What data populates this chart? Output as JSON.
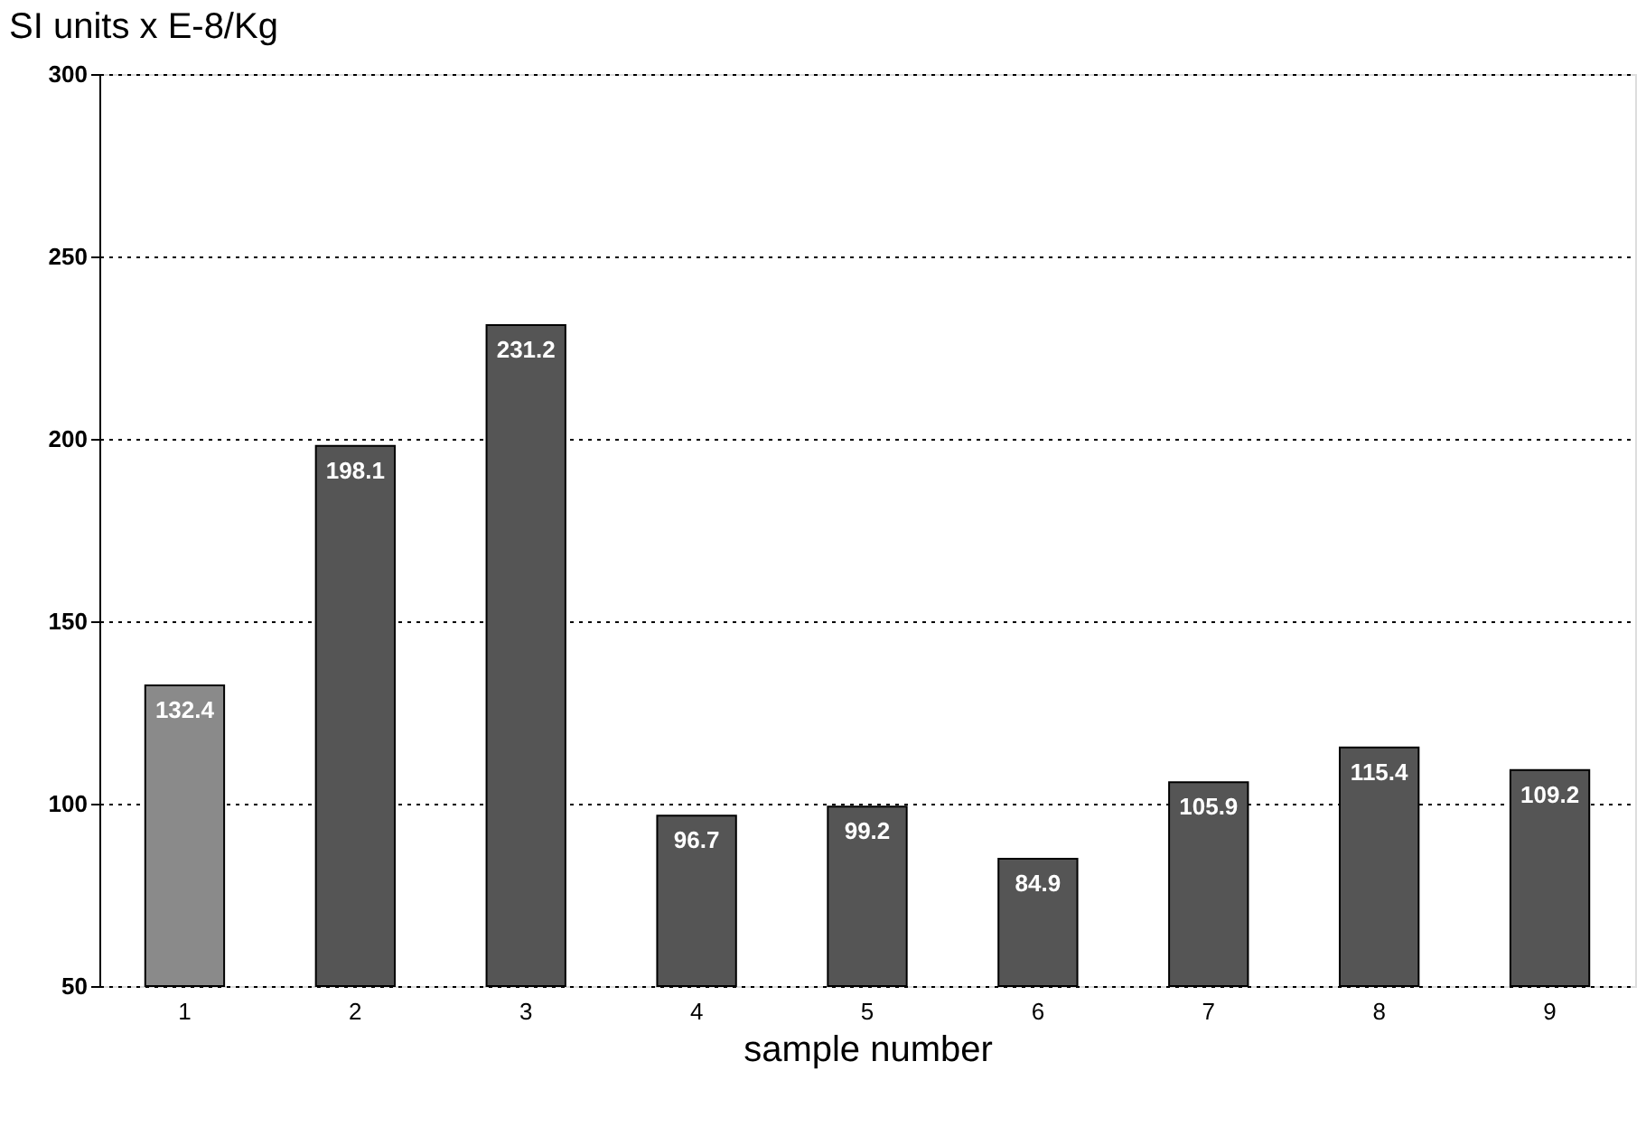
{
  "chart_data": {
    "type": "bar",
    "ylabel": "SI units x E-8/Kg",
    "xlabel": "sample number",
    "categories": [
      "1",
      "2",
      "3",
      "4",
      "5",
      "6",
      "7",
      "8",
      "9"
    ],
    "values": [
      132.4,
      198.1,
      231.2,
      96.7,
      99.2,
      84.9,
      105.9,
      115.4,
      109.2
    ],
    "colors": [
      "#8a8a8a",
      "#555555",
      "#555555",
      "#555555",
      "#555555",
      "#555555",
      "#555555",
      "#555555",
      "#555555"
    ],
    "ylim": [
      50,
      300
    ],
    "yticks": [
      50,
      100,
      150,
      200,
      250,
      300
    ],
    "grid": "y",
    "data_labels": true
  }
}
